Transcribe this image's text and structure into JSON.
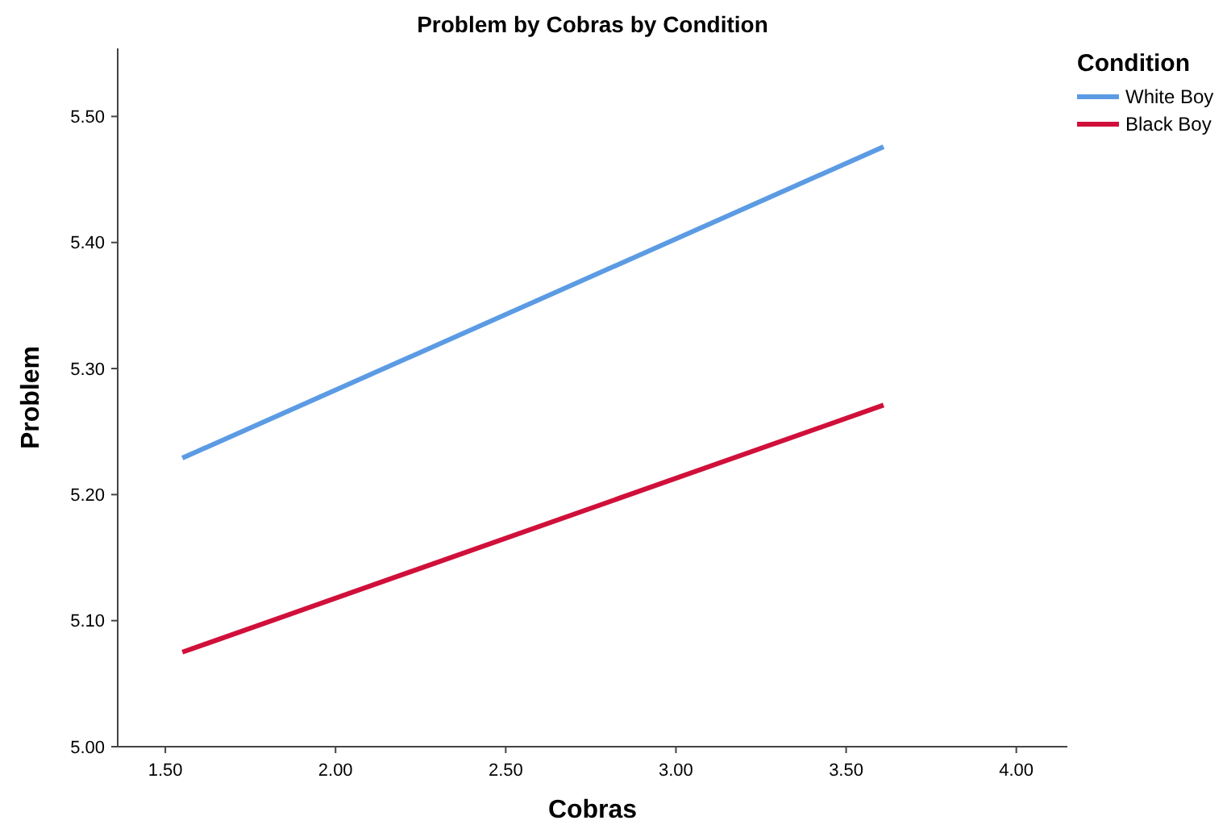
{
  "chart_data": {
    "type": "line",
    "title": "Problem by Cobras by Condition",
    "xlabel": "Cobras",
    "ylabel": "Problem",
    "legend_title": "Condition",
    "legend": "top right",
    "grid": false,
    "marker": "none",
    "line_style": "solid",
    "x": [
      1.55,
      3.61
    ],
    "xlim": [
      1.36,
      4.15
    ],
    "ylim": [
      5.0,
      5.554
    ],
    "xticks": [
      {
        "value": 1.5,
        "label": "1.50"
      },
      {
        "value": 2,
        "label": "2.00"
      },
      {
        "value": 2.5,
        "label": "2.50"
      },
      {
        "value": 3,
        "label": "3.00"
      },
      {
        "value": 3.5,
        "label": "3.50"
      },
      {
        "value": 4,
        "label": "4.00"
      }
    ],
    "yticks": [
      {
        "value": 5,
        "label": "5.00"
      },
      {
        "value": 5.1,
        "label": "5.10"
      },
      {
        "value": 5.2,
        "label": "5.20"
      },
      {
        "value": 5.3,
        "label": "5.30"
      },
      {
        "value": 5.4,
        "label": "5.40"
      },
      {
        "value": 5.5,
        "label": "5.50"
      }
    ],
    "series": [
      {
        "name": "White Boy",
        "color": "#5b9be3",
        "values": [
          5.229,
          5.476
        ]
      },
      {
        "name": "Black Boy",
        "color": "#d0103a",
        "values": [
          5.075,
          5.271
        ]
      }
    ]
  }
}
